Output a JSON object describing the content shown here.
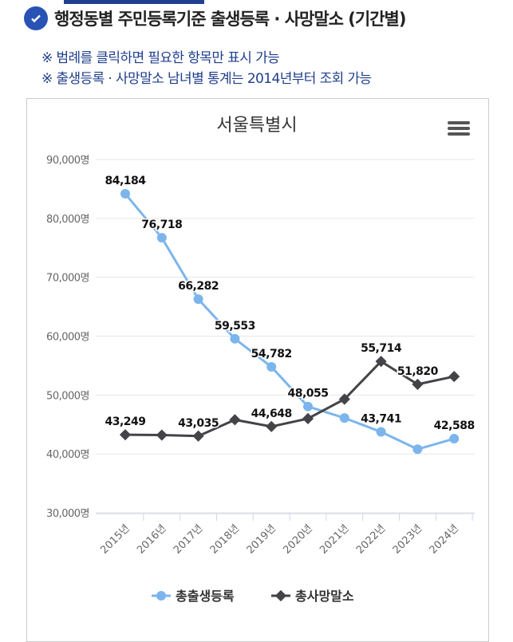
{
  "header": {
    "title": "행정동별 주민등록기준 출생등록 · 사망말소 (기간별)",
    "notes": [
      "※ 범례를 클릭하면 필요한 항목만 표시 가능",
      "※ 출생등록 · 사망말소 남녀별 통계는 2014년부터 조회 가능"
    ],
    "icon": "check-circle-icon"
  },
  "colors": {
    "accent": "#2853b5",
    "births": "#7cb5ec",
    "deaths": "#434348"
  },
  "chart_data": {
    "type": "line",
    "title": "서울특별시",
    "categories": [
      "2015년",
      "2016년",
      "2017년",
      "2018년",
      "2019년",
      "2020년",
      "2021년",
      "2022년",
      "2023년",
      "2024년"
    ],
    "yticks": [
      "30,000명",
      "40,000명",
      "50,000명",
      "60,000명",
      "70,000명",
      "80,000명",
      "90,000명"
    ],
    "ylim": [
      30000,
      90000
    ],
    "grid": true,
    "legend_placement": "bottom",
    "series": [
      {
        "name": "총출생등록",
        "values": [
          84184,
          76718,
          66282,
          59553,
          54782,
          48055,
          46100,
          43741,
          40800,
          42588
        ],
        "labels": [
          "84,184",
          "76,718",
          "66,282",
          "59,553",
          "54,782",
          "48,055",
          "",
          "43,741",
          "",
          "42,588"
        ]
      },
      {
        "name": "총사망말소",
        "values": [
          43249,
          43200,
          43035,
          45800,
          44648,
          46000,
          49300,
          55714,
          51820,
          53150
        ],
        "labels": [
          "43,249",
          "",
          "43,035",
          "",
          "44,648",
          "",
          "",
          "55,714",
          "51,820",
          ""
        ]
      }
    ]
  }
}
